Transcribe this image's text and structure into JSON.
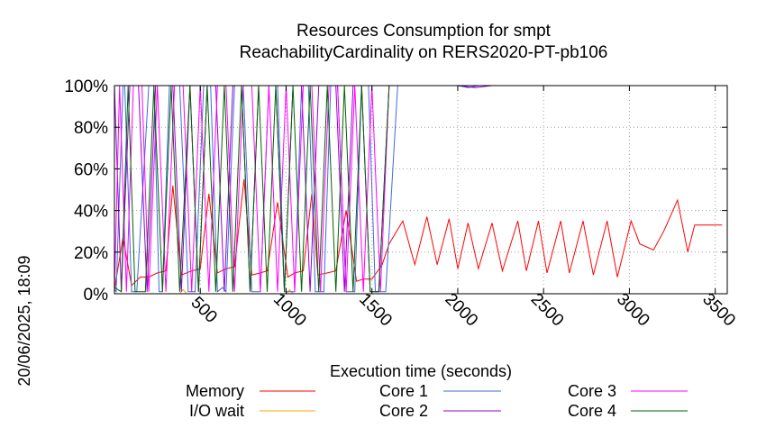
{
  "chart_data": {
    "type": "line",
    "title": "Resources Consumption for smpt",
    "subtitle": "ReachabilityCardinality on RERS2020-PT-pb106",
    "xlabel": "Execution time (seconds)",
    "side_label": "20/06/2025, 18:09",
    "xlim": [
      0,
      3570
    ],
    "ylim": [
      0,
      100
    ],
    "x_ticks": [
      "500",
      "1000",
      "1500",
      "2000",
      "2500",
      "3000",
      "3500"
    ],
    "x_tick_values": [
      500,
      1000,
      1500,
      2000,
      2500,
      3000,
      3500
    ],
    "y_ticks": [
      "0%",
      "20%",
      "40%",
      "60%",
      "80%",
      "100%"
    ],
    "y_tick_values": [
      0,
      20,
      40,
      60,
      80,
      100
    ],
    "grid": true,
    "legend_position": "bottom",
    "series": [
      {
        "name": "Memory",
        "color": "#ff0000",
        "x": [
          0,
          50,
          100,
          150,
          200,
          250,
          300,
          340,
          390,
          450,
          500,
          550,
          600,
          650,
          700,
          755,
          800,
          850,
          890,
          950,
          1010,
          1050,
          1100,
          1150,
          1185,
          1240,
          1290,
          1350,
          1410,
          1450,
          1500,
          1560,
          1600,
          1680,
          1750,
          1820,
          1880,
          1950,
          2000,
          2060,
          2120,
          2200,
          2260,
          2350,
          2400,
          2470,
          2520,
          2600,
          2650,
          2730,
          2790,
          2870,
          2930,
          3010,
          3060,
          3140,
          3200,
          3280,
          3340,
          3380,
          3450,
          3500,
          3540
        ],
        "values": [
          2,
          27,
          4,
          8,
          8,
          10,
          11,
          52,
          9,
          11,
          12,
          48,
          10,
          12,
          13,
          55,
          9,
          10,
          11,
          44,
          8,
          10,
          11,
          48,
          9,
          10,
          11,
          40,
          6,
          7,
          7,
          14,
          24,
          35,
          14,
          37,
          14,
          36,
          12,
          34,
          12,
          34,
          11,
          35,
          11,
          35,
          10,
          35,
          10,
          35,
          9,
          35,
          8,
          35,
          24,
          21,
          30,
          45,
          20,
          33,
          33,
          33,
          33
        ]
      },
      {
        "name": "I/O wait",
        "color": "#ffa500",
        "x": [
          0,
          380,
          400,
          420,
          1000,
          1020,
          1040,
          1060,
          3540
        ],
        "values": [
          0,
          0,
          2,
          0,
          0,
          2,
          0,
          0,
          0
        ]
      },
      {
        "name": "Core 1",
        "color": "#4169e1",
        "x": [
          0,
          10,
          50,
          60,
          100,
          130,
          200,
          230,
          260,
          280,
          320,
          380,
          430,
          470,
          520,
          560,
          600,
          630,
          650,
          700,
          750,
          800,
          850,
          900,
          950,
          990,
          1050,
          1090,
          1130,
          1170,
          1220,
          1260,
          1300,
          1350,
          1400,
          1440,
          1480,
          1520,
          1580,
          1650,
          2000,
          2060,
          2120,
          2200,
          3540
        ],
        "values": [
          2,
          1,
          100,
          100,
          1,
          1,
          100,
          100,
          1,
          1,
          100,
          100,
          1,
          1,
          100,
          100,
          1,
          3,
          1,
          100,
          100,
          1,
          1,
          100,
          100,
          1,
          1,
          100,
          100,
          1,
          1,
          100,
          100,
          1,
          1,
          100,
          100,
          1,
          1,
          100,
          100,
          99,
          100,
          100,
          100
        ]
      },
      {
        "name": "Core 2",
        "color": "#9400d3",
        "x": [
          0,
          40,
          90,
          140,
          190,
          240,
          290,
          340,
          390,
          440,
          490,
          540,
          590,
          640,
          690,
          740,
          790,
          840,
          890,
          940,
          990,
          1040,
          1090,
          1140,
          1190,
          1240,
          1290,
          1340,
          1390,
          1440,
          1490,
          1540,
          1600,
          2000,
          2100,
          2200,
          3540
        ],
        "values": [
          100,
          1,
          100,
          100,
          1,
          100,
          100,
          100,
          1,
          100,
          1,
          100,
          100,
          1,
          100,
          100,
          1,
          100,
          100,
          100,
          1,
          100,
          100,
          1,
          100,
          100,
          100,
          1,
          100,
          100,
          1,
          1,
          100,
          100,
          99,
          100,
          100
        ]
      },
      {
        "name": "Core 3",
        "color": "#ff00ff",
        "x": [
          0,
          30,
          70,
          110,
          160,
          200,
          250,
          300,
          350,
          400,
          450,
          500,
          550,
          600,
          650,
          700,
          750,
          800,
          850,
          900,
          950,
          1000,
          1050,
          1100,
          1150,
          1200,
          1250,
          1300,
          1350,
          1400,
          1450,
          1500,
          1550,
          1600,
          3540
        ],
        "values": [
          1,
          100,
          1,
          100,
          100,
          1,
          100,
          1,
          100,
          100,
          1,
          100,
          1,
          100,
          100,
          1,
          100,
          100,
          1,
          100,
          1,
          100,
          1,
          100,
          100,
          1,
          100,
          100,
          1,
          100,
          1,
          100,
          1,
          100,
          100
        ]
      },
      {
        "name": "Core 4",
        "color": "#006400",
        "x": [
          0,
          40,
          80,
          120,
          180,
          230,
          280,
          330,
          380,
          440,
          490,
          540,
          590,
          640,
          690,
          740,
          790,
          840,
          890,
          940,
          990,
          1040,
          1090,
          1140,
          1190,
          1240,
          1290,
          1340,
          1390,
          1440,
          1490,
          1540,
          1600,
          1650,
          3540
        ],
        "values": [
          3,
          1,
          100,
          1,
          1,
          100,
          1,
          100,
          1,
          100,
          1,
          100,
          1,
          100,
          1,
          100,
          1,
          100,
          1,
          100,
          1,
          100,
          1,
          100,
          1,
          100,
          1,
          100,
          1,
          100,
          1,
          1,
          100,
          100,
          100
        ]
      }
    ]
  }
}
